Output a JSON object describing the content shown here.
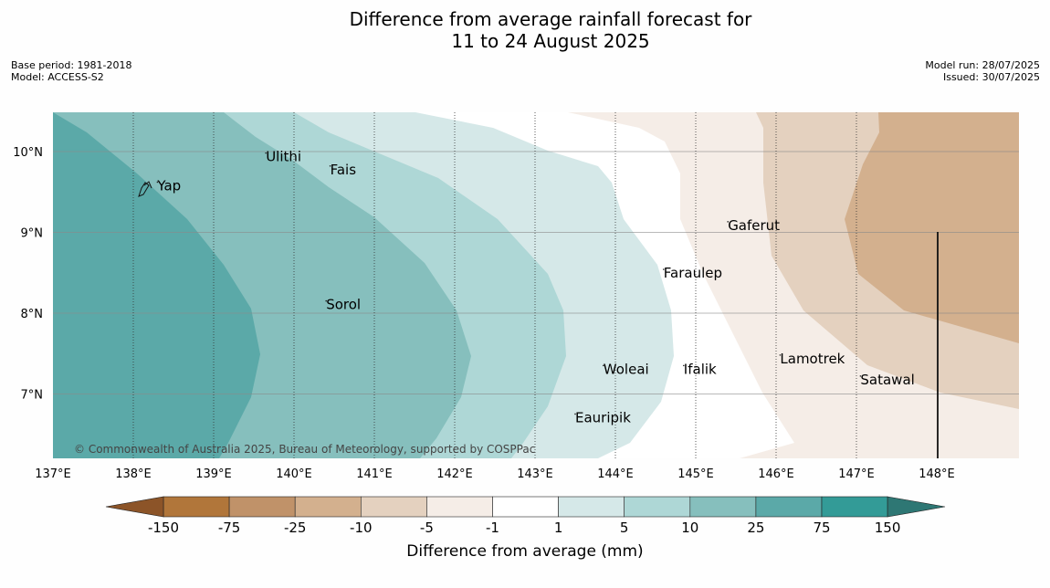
{
  "title_line1": "Difference from average rainfall forecast for",
  "title_line2": "11 to 24 August 2025",
  "base_period": "Base period: 1981-2018",
  "model": "Model: ACCESS-S2",
  "model_run": "Model run: 28/07/2025",
  "issued": "Issued: 30/07/2025",
  "copyright": "© Commonwealth of Australia 2025, Bureau of Meteorology, supported by COSPPac",
  "colorbar_title": "Difference from average (mm)",
  "colorbar_ticks": [
    "-150",
    "-75",
    "-25",
    "-10",
    "-5",
    "-1",
    "1",
    "5",
    "10",
    "25",
    "75",
    "150"
  ],
  "colorbar_colors": [
    "#b1763a",
    "#c09269",
    "#d3b08e",
    "#e4d1bf",
    "#f5ede7",
    "#ffffff",
    "#d5e8e8",
    "#aed7d6",
    "#86bfbd",
    "#5ba9a8",
    "#339b97"
  ],
  "colorbar_under": "#8c5428",
  "colorbar_over": "#2e7774",
  "lon_labels": [
    "137°E",
    "138°E",
    "139°E",
    "140°E",
    "141°E",
    "142°E",
    "143°E",
    "144°E",
    "145°E",
    "146°E",
    "147°E",
    "148°E"
  ],
  "lat_labels": [
    "10°N",
    "9°N",
    "8°N",
    "7°N"
  ],
  "places": [
    {
      "name": "Ulithi",
      "lon": 139.65,
      "lat": 9.88
    },
    {
      "name": "Fais",
      "lon": 140.45,
      "lat": 9.72
    },
    {
      "name": "Yap",
      "lon": 138.3,
      "lat": 9.52
    },
    {
      "name": "Gaferut",
      "lon": 145.4,
      "lat": 9.03
    },
    {
      "name": "Faraulep",
      "lon": 144.6,
      "lat": 8.44
    },
    {
      "name": "Sorol",
      "lon": 140.4,
      "lat": 8.05
    },
    {
      "name": "Lamotrek",
      "lon": 146.05,
      "lat": 7.38
    },
    {
      "name": "Woleai",
      "lon": 143.85,
      "lat": 7.25
    },
    {
      "name": "Ifalik",
      "lon": 144.85,
      "lat": 7.25
    },
    {
      "name": "Satawal",
      "lon": 147.05,
      "lat": 7.12
    },
    {
      "name": "Eauripik",
      "lon": 143.5,
      "lat": 6.65
    }
  ]
}
